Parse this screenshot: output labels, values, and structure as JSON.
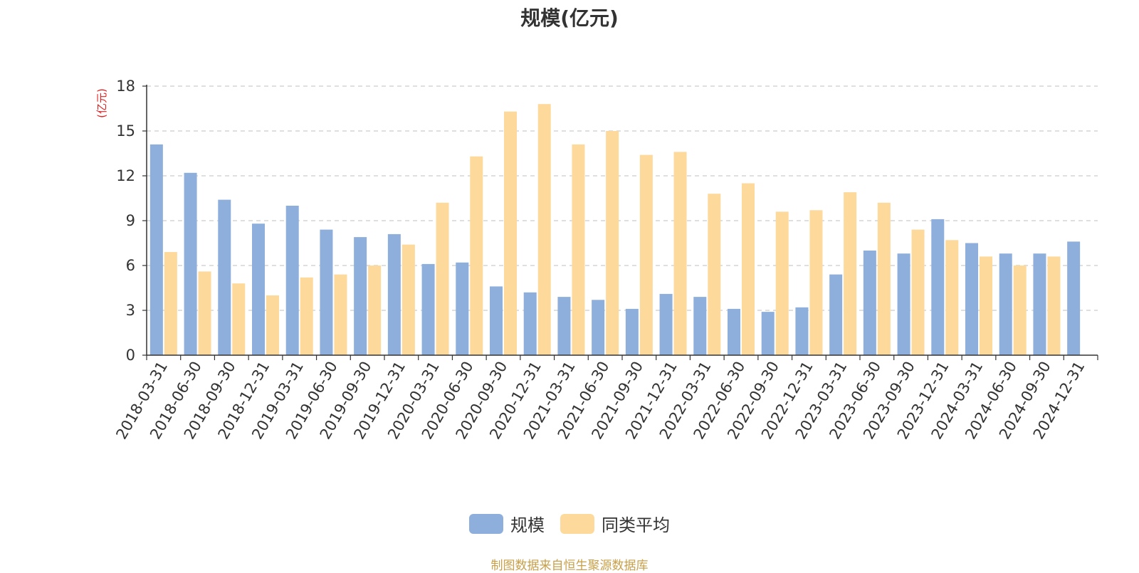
{
  "chart_data": {
    "type": "bar",
    "title": "规模(亿元)",
    "ylabel": "(亿元)",
    "ylim": [
      0,
      18
    ],
    "yticks": [
      0,
      3,
      6,
      9,
      12,
      15,
      18
    ],
    "grid": true,
    "legend_position": "bottom-center",
    "categories": [
      "2018-03-31",
      "2018-06-30",
      "2018-09-30",
      "2018-12-31",
      "2019-03-31",
      "2019-06-30",
      "2019-09-30",
      "2019-12-31",
      "2020-03-31",
      "2020-06-30",
      "2020-09-30",
      "2020-12-31",
      "2021-03-31",
      "2021-06-30",
      "2021-09-30",
      "2021-12-31",
      "2022-03-31",
      "2022-06-30",
      "2022-09-30",
      "2022-12-31",
      "2023-03-31",
      "2023-06-30",
      "2023-09-30",
      "2023-12-31",
      "2024-03-31",
      "2024-06-30",
      "2024-09-30",
      "2024-12-31"
    ],
    "series": [
      {
        "name": "规模",
        "color": "#8eaedb",
        "values": [
          14.1,
          12.2,
          10.4,
          8.8,
          10.0,
          8.4,
          7.9,
          8.1,
          6.1,
          6.2,
          4.6,
          4.2,
          3.9,
          3.7,
          3.1,
          4.1,
          3.9,
          3.1,
          2.9,
          3.2,
          5.4,
          7.0,
          6.8,
          9.1,
          7.5,
          6.8,
          6.8,
          7.6
        ]
      },
      {
        "name": "同类平均",
        "color": "#fdd99b",
        "values": [
          6.9,
          5.6,
          4.8,
          4.0,
          5.2,
          5.4,
          6.0,
          7.4,
          10.2,
          13.3,
          16.3,
          16.8,
          14.1,
          15.0,
          13.4,
          13.6,
          10.8,
          11.5,
          9.6,
          9.7,
          10.9,
          10.2,
          8.4,
          7.7,
          6.6,
          6.0,
          6.6,
          null
        ]
      }
    ]
  },
  "footer": {
    "source": "制图数据来自恒生聚源数据库"
  }
}
